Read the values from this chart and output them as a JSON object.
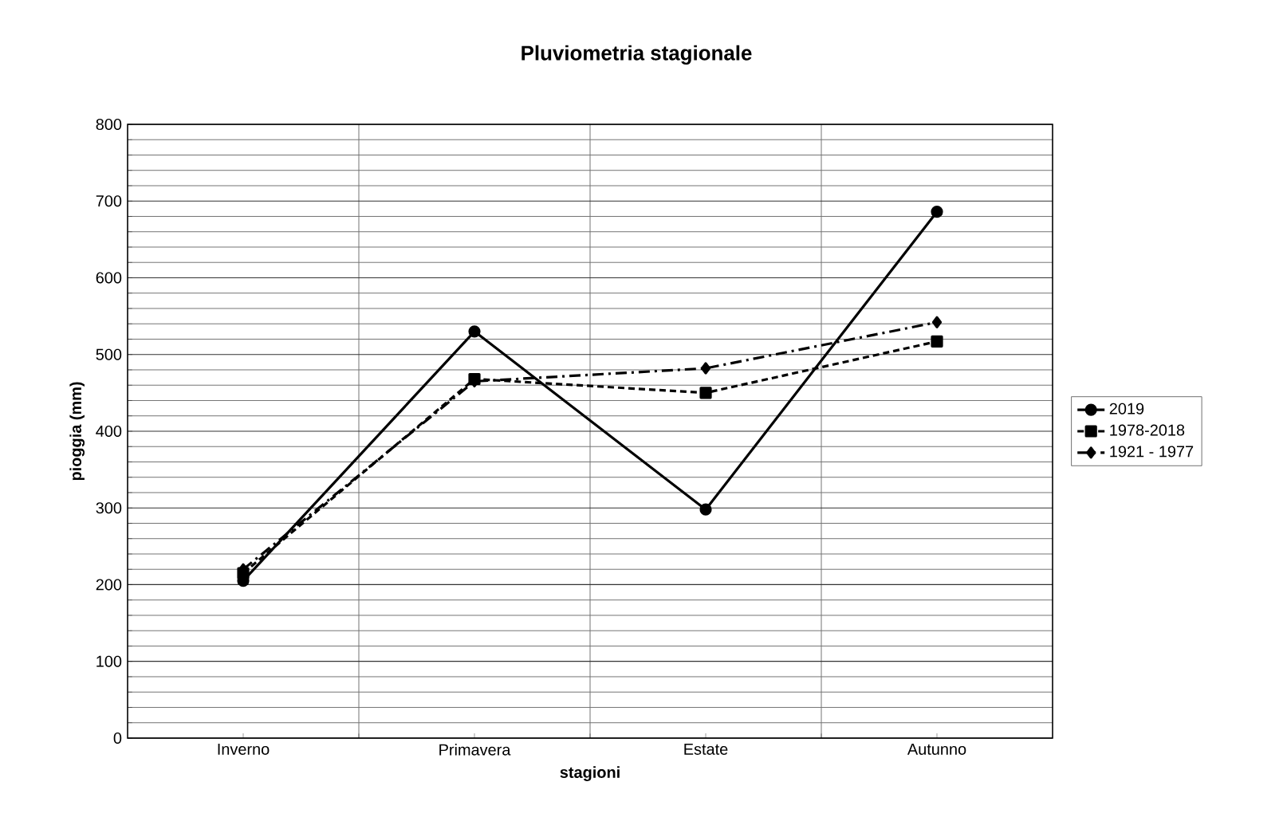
{
  "chart_data": {
    "type": "line",
    "title": "Pluviometria stagionale",
    "xlabel": "stagioni",
    "ylabel": "pioggia (mm)",
    "categories": [
      "Inverno",
      "Primavera",
      "Estate",
      "Autunno"
    ],
    "series": [
      {
        "name": "2019",
        "color": "#000000",
        "values": [
          205,
          530,
          298,
          686
        ],
        "marker": "circle",
        "line_style": "solid"
      },
      {
        "name": "1978-2018",
        "color": "#000000",
        "values": [
          215,
          468,
          450,
          517
        ],
        "marker": "square",
        "line_style": "dashed"
      },
      {
        "name": "1921 - 1977",
        "color": "#000000",
        "values": [
          220,
          465,
          482,
          542
        ],
        "marker": "diamond",
        "line_style": "dashdot"
      }
    ],
    "ylim": [
      0,
      800
    ],
    "yticks": [
      0,
      100,
      200,
      300,
      400,
      500,
      600,
      700,
      800
    ],
    "grid": true,
    "legend": "right"
  }
}
